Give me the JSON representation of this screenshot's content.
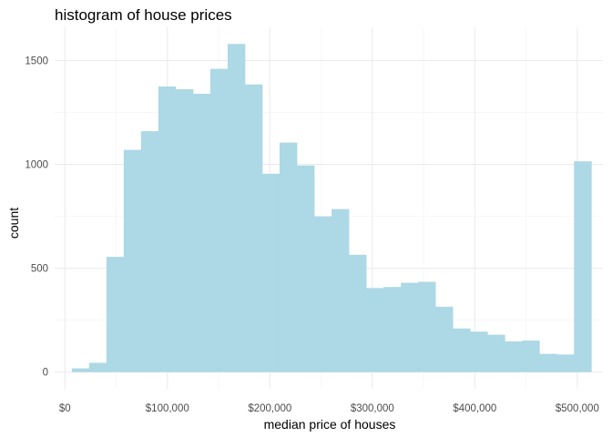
{
  "chart_data": {
    "type": "bar",
    "title": "histogram of house prices",
    "xlabel": "median price of houses",
    "ylabel": "count",
    "grid": true,
    "xlim": [
      -10000,
      525000
    ],
    "ylim": [
      -80,
      1660
    ],
    "x_ticks": [
      {
        "value": 0,
        "label": "$0"
      },
      {
        "value": 100000,
        "label": "$100,000"
      },
      {
        "value": 200000,
        "label": "$200,000"
      },
      {
        "value": 300000,
        "label": "$300,000"
      },
      {
        "value": 400000,
        "label": "$400,000"
      },
      {
        "value": 500000,
        "label": "$500,000"
      }
    ],
    "y_ticks": [
      {
        "value": 0,
        "label": "0"
      },
      {
        "value": 500,
        "label": "500"
      },
      {
        "value": 1000,
        "label": "1000"
      },
      {
        "value": 1500,
        "label": "1500"
      }
    ],
    "bin_width": 16900,
    "bin_start": 6700,
    "counts": [
      18,
      45,
      555,
      1070,
      1160,
      1375,
      1362,
      1340,
      1460,
      1580,
      1385,
      955,
      1105,
      995,
      750,
      785,
      565,
      405,
      410,
      430,
      435,
      315,
      210,
      195,
      180,
      148,
      152,
      88,
      85,
      1015
    ],
    "bar_color": "#add8e6"
  }
}
